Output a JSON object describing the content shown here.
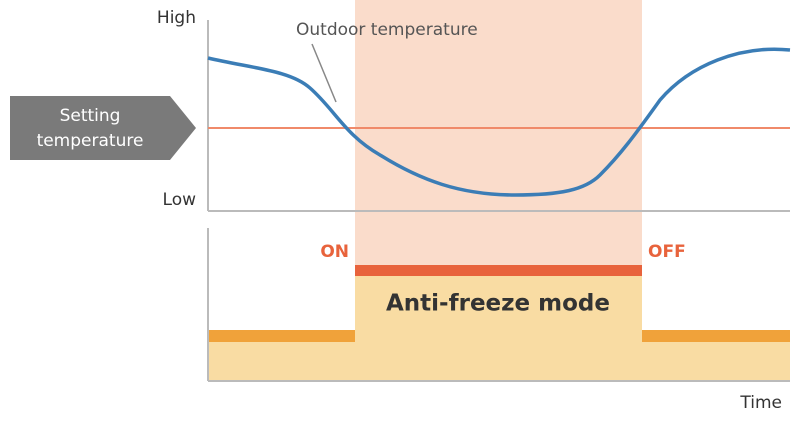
{
  "axis": {
    "high": "High",
    "low": "Low",
    "time": "Time"
  },
  "curve_label": "Outdoor temperature",
  "setting_label": [
    "Setting",
    "temperature"
  ],
  "on_label": "ON",
  "off_label": "OFF",
  "mode_label": "Anti-freeze mode"
}
